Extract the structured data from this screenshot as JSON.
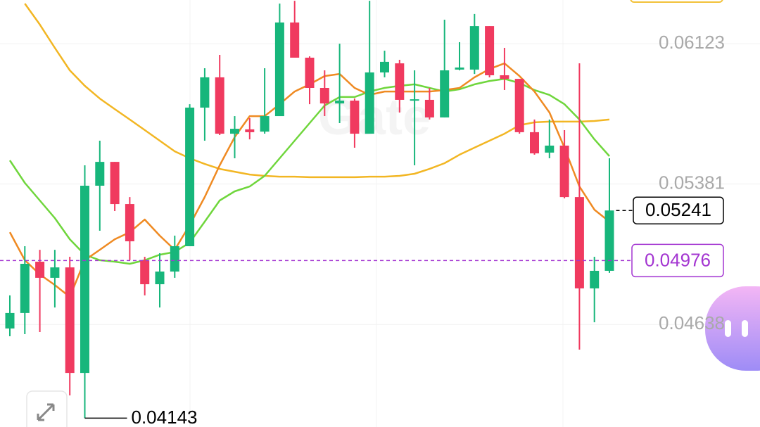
{
  "chart_data": {
    "type": "candlestick",
    "watermark": "Gate",
    "categories": [
      null,
      null,
      null,
      null,
      null,
      null,
      null,
      null,
      null,
      null,
      null,
      null,
      null,
      null,
      null,
      null,
      null,
      null,
      null,
      null,
      null,
      null,
      null,
      null,
      null,
      null,
      null,
      null,
      null,
      null,
      null,
      null,
      null,
      null,
      null,
      null,
      null,
      null,
      null,
      null,
      null
    ],
    "open": [
      0.04617,
      0.04699,
      0.0497,
      0.04885,
      0.0494,
      0.04382,
      0.05372,
      0.05498,
      0.05275,
      0.04978,
      0.04851,
      0.04918,
      0.05052,
      0.05785,
      0.05945,
      0.05647,
      0.0567,
      0.05658,
      0.0574,
      0.06235,
      0.06049,
      0.05889,
      0.05807,
      0.05822,
      0.05647,
      0.05971,
      0.06019,
      0.05822,
      0.05826,
      0.05733,
      0.05986,
      0.05986,
      0.06216,
      0.05956,
      0.05937,
      0.05655,
      0.05547,
      0.05584,
      0.05312,
      0.04829,
      0.04922
    ],
    "high": [
      0.04792,
      0.05052,
      0.05033,
      0.05033,
      0.04996,
      0.0548,
      0.0561,
      0.05498,
      0.05312,
      0.04996,
      0.05015,
      0.05108,
      0.05803,
      0.05993,
      0.06064,
      0.0574,
      0.05729,
      0.05993,
      0.06335,
      0.0635,
      0.06056,
      0.05982,
      0.06123,
      0.05833,
      0.0635,
      0.06086,
      0.06038,
      0.05982,
      0.05889,
      0.0625,
      0.06131,
      0.0628,
      0.06216,
      0.06101,
      0.05937,
      0.05722,
      0.05722,
      0.05666,
      0.06019,
      0.04996,
      0.05517
    ],
    "low": [
      0.04576,
      0.04587,
      0.04598,
      0.04728,
      0.04263,
      0.04143,
      0.05134,
      0.05238,
      0.04978,
      0.04792,
      0.04728,
      0.04885,
      0.05052,
      0.0561,
      0.0564,
      0.05517,
      0.05617,
      0.05647,
      0.0574,
      0.06049,
      0.05803,
      0.0574,
      0.05703,
      0.05573,
      0.05647,
      0.05945,
      0.05759,
      0.0548,
      0.05722,
      0.05733,
      0.05982,
      0.05963,
      0.05945,
      0.05878,
      0.05647,
      0.05536,
      0.05517,
      0.05305,
      0.04505,
      0.0465,
      0.04911
    ],
    "close": [
      0.04699,
      0.04959,
      0.04885,
      0.0494,
      0.04382,
      0.05372,
      0.05498,
      0.05275,
      0.05078,
      0.04851,
      0.04918,
      0.05052,
      0.05785,
      0.05945,
      0.05647,
      0.05673,
      0.05655,
      0.0574,
      0.06235,
      0.06049,
      0.05889,
      0.05807,
      0.05822,
      0.05647,
      0.05971,
      0.06027,
      0.05826,
      0.05829,
      0.05733,
      0.05982,
      0.05997,
      0.06216,
      0.05956,
      0.05937,
      0.05655,
      0.05543,
      0.05584,
      0.05312,
      0.04829,
      0.04922,
      0.05241
    ],
    "up_color": "#17b67b",
    "down_color": "#f03a5f",
    "lines": [
      {
        "color": "#f2b623",
        "values": [
          null,
          0.06335,
          0.06224,
          0.06101,
          0.05982,
          0.059,
          0.05833,
          0.05777,
          0.05722,
          0.05666,
          0.0561,
          0.05554,
          0.05517,
          0.05487,
          0.05461,
          0.05446,
          0.05431,
          0.05424,
          0.0542,
          0.0542,
          0.05417,
          0.05417,
          0.05417,
          0.05417,
          0.0542,
          0.0542,
          0.05424,
          0.05435,
          0.05461,
          0.05491,
          0.05536,
          0.05573,
          0.0561,
          0.05647,
          0.05692,
          0.05707,
          0.05711,
          0.05711,
          0.05711,
          0.05714,
          0.05722
        ]
      },
      {
        "color": "#6fd63c",
        "values": [
          0.05506,
          0.05387,
          0.05294,
          0.05201,
          0.05089,
          0.05007,
          0.04978,
          0.0497,
          0.04959,
          0.04978,
          0.05007,
          0.05022,
          0.05071,
          0.05182,
          0.05294,
          0.05342,
          0.05368,
          0.05424,
          0.05517,
          0.0561,
          0.05703,
          0.05796,
          0.05841,
          0.05841,
          0.0587,
          0.05889,
          0.059,
          0.05908,
          0.05889,
          0.0587,
          0.05882,
          0.05908,
          0.05926,
          0.05937,
          0.05915,
          0.05878,
          0.05852,
          0.05803,
          0.05722,
          0.05617,
          0.05528
        ]
      },
      {
        "color": "#ef8a22",
        "values": [
          0.05126,
          0.04978,
          0.04903,
          0.04847,
          0.04784,
          0.04978,
          0.05033,
          0.05089,
          0.05126,
          0.05193,
          0.05108,
          0.05033,
          0.05164,
          0.05312,
          0.0548,
          0.05629,
          0.0574,
          0.0574,
          0.05803,
          0.0587,
          0.05908,
          0.05952,
          0.05963,
          0.05889,
          0.05852,
          0.0587,
          0.0587,
          0.0587,
          0.0587,
          0.05878,
          0.05889,
          0.05945,
          0.05989,
          0.06019,
          0.05952,
          0.0587,
          0.05759,
          0.05573,
          0.05368,
          0.05245,
          0.05182
        ]
      }
    ],
    "ylim": [
      0.04096,
      0.06354
    ],
    "yticks": [
      0.06123,
      0.05381,
      0.04638
    ],
    "grid": true,
    "last_price": 0.05241,
    "mark_price": 0.04976,
    "mark_price_color": "#a335d1",
    "low_label": 0.04143
  }
}
